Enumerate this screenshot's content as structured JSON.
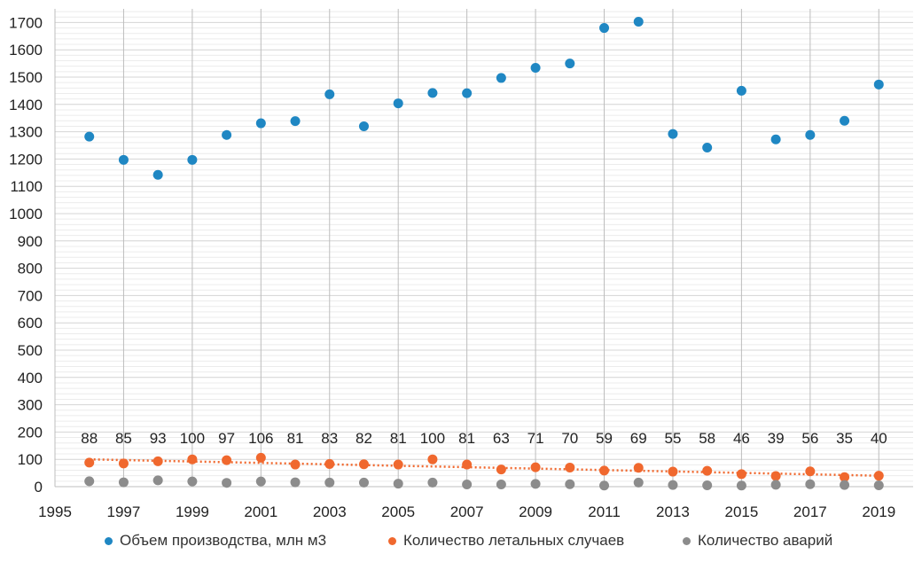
{
  "chart_data": {
    "type": "scatter",
    "x": [
      1996,
      1997,
      1998,
      1999,
      2000,
      2001,
      2002,
      2003,
      2004,
      2005,
      2006,
      2007,
      2008,
      2009,
      2010,
      2011,
      2012,
      2013,
      2014,
      2015,
      2016,
      2017,
      2018,
      2019
    ],
    "series": [
      {
        "name": "Объем производства, млн м3",
        "color": "#1f87c3",
        "values": [
          1282,
          1197,
          1142,
          1197,
          1288,
          1331,
          1339,
          1437,
          1320,
          1404,
          1442,
          1441,
          1497,
          1534,
          1550,
          1680,
          1703,
          1292,
          1242,
          1450,
          1272,
          1288,
          1340,
          1473
        ]
      },
      {
        "name": "Количество летальных случаев",
        "color": "#f0682e",
        "values": [
          88,
          85,
          93,
          100,
          97,
          106,
          81,
          83,
          82,
          81,
          100,
          81,
          63,
          71,
          70,
          59,
          69,
          55,
          58,
          46,
          39,
          56,
          35,
          40
        ]
      },
      {
        "name": "Количество аварий",
        "color": "#8c8c8c",
        "values": [
          20,
          16,
          23,
          19,
          14,
          19,
          16,
          15,
          15,
          11,
          15,
          8,
          8,
          10,
          9,
          4,
          15,
          6,
          5,
          4,
          7,
          9,
          6,
          5
        ]
      }
    ],
    "data_labels": [
      "88",
      "85",
      "93",
      "100",
      "97",
      "106",
      "81",
      "83",
      "82",
      "81",
      "100",
      "81",
      "63",
      "71",
      "70",
      "59",
      "69",
      "55",
      "58",
      "46",
      "39",
      "56",
      "35",
      "40"
    ],
    "trendline": {
      "series": "Количество летальных случаев",
      "color": "#f0682e",
      "style": "dotted",
      "start": 100,
      "end": 40
    },
    "xlim": [
      1995,
      2020
    ],
    "ylim": [
      0,
      1750
    ],
    "xticks": [
      "1995",
      "1997",
      "1999",
      "2001",
      "2003",
      "2005",
      "2007",
      "2009",
      "2011",
      "2013",
      "2015",
      "2017",
      "2019"
    ],
    "yticks": [
      "0",
      "100",
      "200",
      "300",
      "400",
      "500",
      "600",
      "700",
      "800",
      "900",
      "1000",
      "1100",
      "1200",
      "1300",
      "1400",
      "1500",
      "1600",
      "1700"
    ],
    "title": "",
    "xlabel": "",
    "ylabel": ""
  },
  "legend": {
    "items": [
      {
        "label": "Объем производства, млн м3",
        "color": "#1f87c3"
      },
      {
        "label": "Количество летальных случаев",
        "color": "#f0682e"
      },
      {
        "label": "Количество аварий",
        "color": "#8c8c8c"
      }
    ]
  }
}
